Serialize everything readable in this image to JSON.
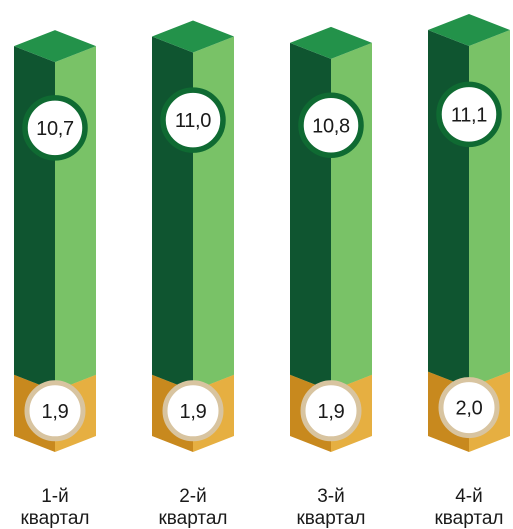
{
  "chart_data": {
    "type": "bar",
    "stacked": true,
    "categories": [
      "1-й квартал",
      "2-й квартал",
      "3-й квартал",
      "4-й квартал"
    ],
    "category_lines": [
      [
        "1-й",
        "квартал"
      ],
      [
        "2-й",
        "квартал"
      ],
      [
        "3-й",
        "квартал"
      ],
      [
        "4-й",
        "квартал"
      ]
    ],
    "series": [
      {
        "values": [
          1.9,
          1.9,
          1.9,
          2.0
        ],
        "labels": [
          "1,9",
          "1,9",
          "1,9",
          "2,0"
        ],
        "color": "#E5A93A"
      },
      {
        "values": [
          10.7,
          11.0,
          10.8,
          11.1
        ],
        "labels": [
          "10,7",
          "11,0",
          "10,8",
          "11,1"
        ],
        "color": "#1B7A3A"
      }
    ],
    "colors": {
      "green_top": "#23924A",
      "green_dark_face": "#0F5530",
      "green_light_face": "#79C267",
      "gold_top": "#EEB849",
      "gold_dark_face": "#C8891E",
      "gold_light_face": "#E6AF41",
      "green_ring": "#0F6A32",
      "gold_ring": "#D8C4A0"
    },
    "grid": false,
    "legend": "none"
  }
}
